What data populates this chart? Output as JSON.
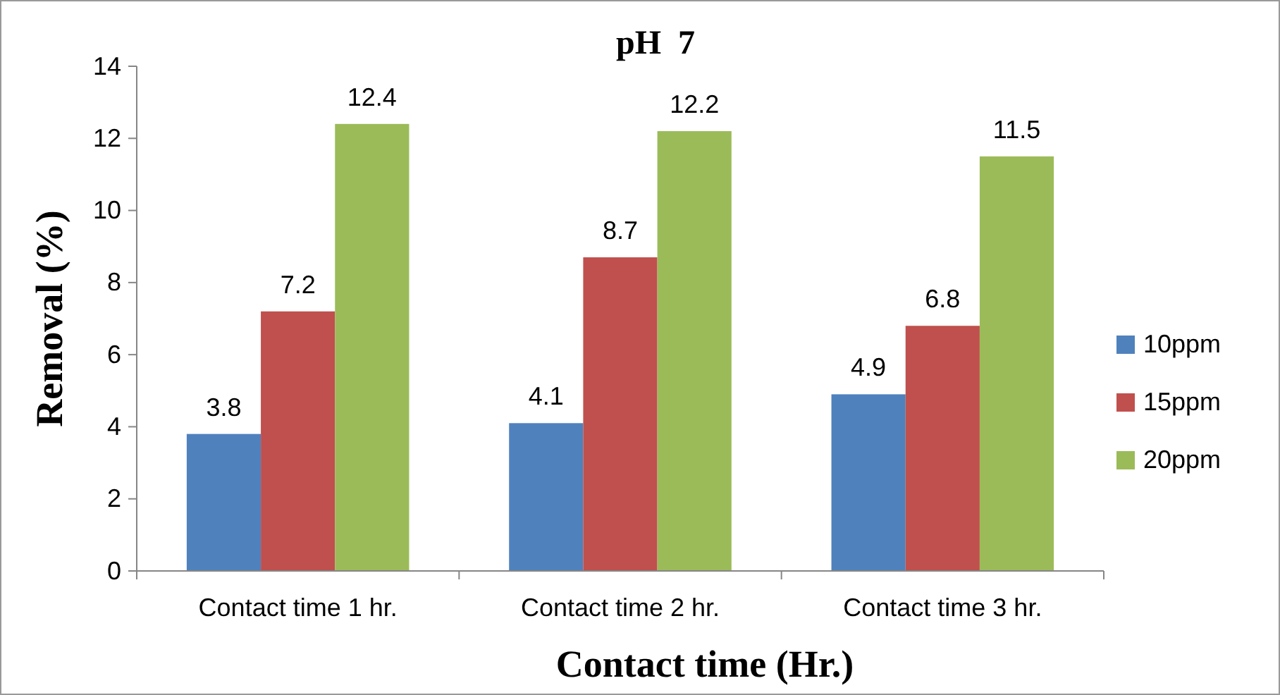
{
  "chart_data": {
    "type": "bar",
    "title": "pH  7",
    "xlabel": "Contact time (Hr.)",
    "ylabel": "Removal (%)",
    "categories": [
      "Contact time 1 hr.",
      "Contact time 2 hr.",
      "Contact time  3 hr."
    ],
    "series": [
      {
        "name": "10ppm",
        "color": "#4f81bd",
        "values": [
          3.8,
          4.1,
          4.9
        ]
      },
      {
        "name": "15ppm",
        "color": "#c0504d",
        "values": [
          7.2,
          8.7,
          6.8
        ]
      },
      {
        "name": "20ppm",
        "color": "#9bbb59",
        "values": [
          12.4,
          12.2,
          11.5
        ]
      }
    ],
    "ylim": [
      0,
      14
    ],
    "yticks": [
      0,
      2,
      4,
      6,
      8,
      10,
      12,
      14
    ],
    "grid": false,
    "legend": "right",
    "data_labels": true
  }
}
